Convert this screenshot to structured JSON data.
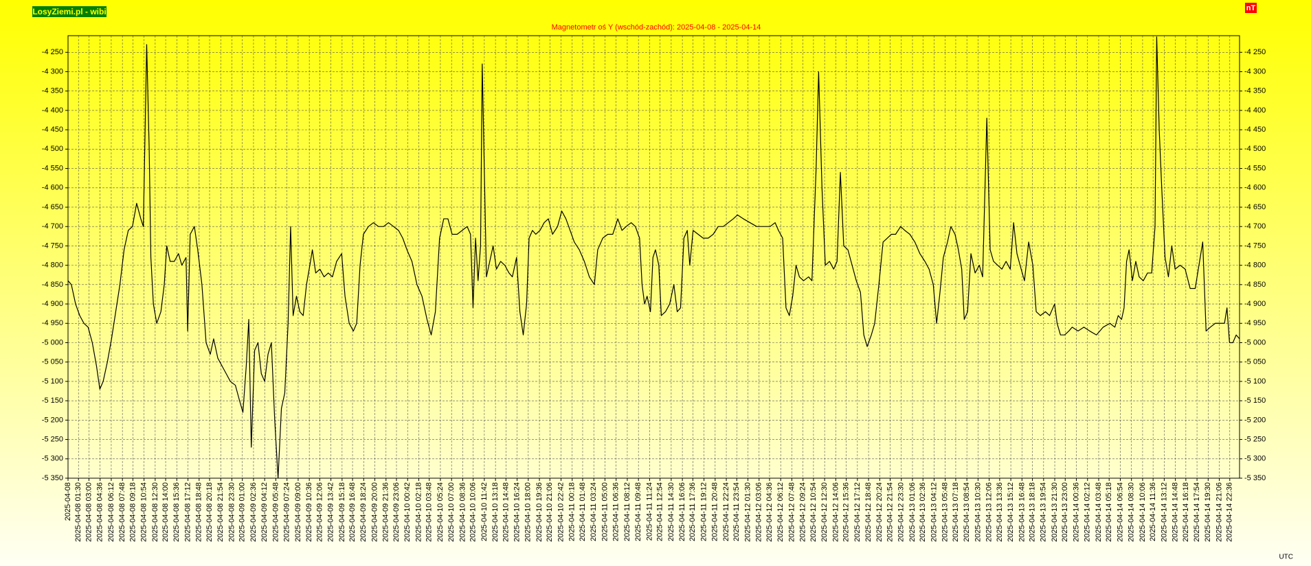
{
  "chart_data": {
    "type": "line",
    "title": "Magnetometr oś Y (wschód-zachód): 2025-04-08 - 2025-04-14",
    "badge": "LosyZiemi.pl - wibi",
    "unit": "nT",
    "xlabel": "UTC",
    "color": "#000000",
    "grid": true,
    "xlim": [
      0,
      168
    ],
    "ylim": [
      -5350,
      -4207
    ],
    "yticks": [
      {
        "value": -4250,
        "label": "-4 250"
      },
      {
        "value": -4300,
        "label": "-4 300"
      },
      {
        "value": -4350,
        "label": "-4 350"
      },
      {
        "value": -4400,
        "label": "-4 400"
      },
      {
        "value": -4450,
        "label": "-4 450"
      },
      {
        "value": -4500,
        "label": "-4 500"
      },
      {
        "value": -4550,
        "label": "-4 550"
      },
      {
        "value": -4600,
        "label": "-4 600"
      },
      {
        "value": -4650,
        "label": "-4 650"
      },
      {
        "value": -4700,
        "label": "-4 700"
      },
      {
        "value": -4750,
        "label": "-4 750"
      },
      {
        "value": -4800,
        "label": "-4 800"
      },
      {
        "value": -4850,
        "label": "-4 850"
      },
      {
        "value": -4900,
        "label": "-4 900"
      },
      {
        "value": -4950,
        "label": "-4 950"
      },
      {
        "value": -5000,
        "label": "-5 000"
      },
      {
        "value": -5050,
        "label": "-5 050"
      },
      {
        "value": -5100,
        "label": "-5 100"
      },
      {
        "value": -5150,
        "label": "-5 150"
      },
      {
        "value": -5200,
        "label": "-5 200"
      },
      {
        "value": -5250,
        "label": "-5 250"
      },
      {
        "value": -5300,
        "label": "-5 300"
      },
      {
        "value": -5350,
        "label": "-5 350"
      }
    ],
    "xticks": [
      {
        "value": 0,
        "label": "2025-04-08"
      },
      {
        "value": 1.5,
        "label": "2025-04-08 01:30"
      },
      {
        "value": 3,
        "label": "2025-04-08 03:00"
      },
      {
        "value": 4.6,
        "label": "2025-04-08 04:36"
      },
      {
        "value": 6.2,
        "label": "2025-04-08 06:12"
      },
      {
        "value": 7.8,
        "label": "2025-04-08 07:48"
      },
      {
        "value": 9.3,
        "label": "2025-04-08 09:18"
      },
      {
        "value": 10.9,
        "label": "2025-04-08 10:54"
      },
      {
        "value": 12.5,
        "label": "2025-04-08 12:30"
      },
      {
        "value": 14,
        "label": "2025-04-08 14:00"
      },
      {
        "value": 15.6,
        "label": "2025-04-08 15:36"
      },
      {
        "value": 17.2,
        "label": "2025-04-08 17:12"
      },
      {
        "value": 18.8,
        "label": "2025-04-08 18:48"
      },
      {
        "value": 20.3,
        "label": "2025-04-08 20:18"
      },
      {
        "value": 21.9,
        "label": "2025-04-08 21:54"
      },
      {
        "value": 23.5,
        "label": "2025-04-08 23:30"
      },
      {
        "value": 25,
        "label": "2025-04-09 01:00"
      },
      {
        "value": 26.6,
        "label": "2025-04-09 02:36"
      },
      {
        "value": 28.2,
        "label": "2025-04-09 04:12"
      },
      {
        "value": 29.8,
        "label": "2025-04-09 05:48"
      },
      {
        "value": 31.4,
        "label": "2025-04-09 07:24"
      },
      {
        "value": 33,
        "label": "2025-04-09 09:00"
      },
      {
        "value": 34.6,
        "label": "2025-04-09 10:36"
      },
      {
        "value": 36.1,
        "label": "2025-04-09 12:06"
      },
      {
        "value": 37.7,
        "label": "2025-04-09 13:42"
      },
      {
        "value": 39.3,
        "label": "2025-04-09 15:18"
      },
      {
        "value": 40.8,
        "label": "2025-04-09 16:48"
      },
      {
        "value": 42.4,
        "label": "2025-04-09 18:24"
      },
      {
        "value": 44,
        "label": "2025-04-09 20:00"
      },
      {
        "value": 45.6,
        "label": "2025-04-09 21:36"
      },
      {
        "value": 47.1,
        "label": "2025-04-09 23:06"
      },
      {
        "value": 48.7,
        "label": "2025-04-10 00:42"
      },
      {
        "value": 50.3,
        "label": "2025-04-10 02:18"
      },
      {
        "value": 51.8,
        "label": "2025-04-10 03:48"
      },
      {
        "value": 53.4,
        "label": "2025-04-10 05:24"
      },
      {
        "value": 55,
        "label": "2025-04-10 07:00"
      },
      {
        "value": 56.6,
        "label": "2025-04-10 08:36"
      },
      {
        "value": 58.1,
        "label": "2025-04-10 10:06"
      },
      {
        "value": 59.7,
        "label": "2025-04-10 11:42"
      },
      {
        "value": 61.3,
        "label": "2025-04-10 13:18"
      },
      {
        "value": 62.8,
        "label": "2025-04-10 14:48"
      },
      {
        "value": 64.4,
        "label": "2025-04-10 16:24"
      },
      {
        "value": 66,
        "label": "2025-04-10 18:00"
      },
      {
        "value": 67.6,
        "label": "2025-04-10 19:36"
      },
      {
        "value": 69.1,
        "label": "2025-04-10 21:06"
      },
      {
        "value": 70.7,
        "label": "2025-04-10 22:42"
      },
      {
        "value": 72.3,
        "label": "2025-04-11 00:18"
      },
      {
        "value": 73.8,
        "label": "2025-04-11 01:48"
      },
      {
        "value": 75.4,
        "label": "2025-04-11 03:24"
      },
      {
        "value": 77,
        "label": "2025-04-11 05:00"
      },
      {
        "value": 78.6,
        "label": "2025-04-11 06:36"
      },
      {
        "value": 80.2,
        "label": "2025-04-11 08:12"
      },
      {
        "value": 81.8,
        "label": "2025-04-11 09:48"
      },
      {
        "value": 83.4,
        "label": "2025-04-11 11:24"
      },
      {
        "value": 84.9,
        "label": "2025-04-11 12:54"
      },
      {
        "value": 86.5,
        "label": "2025-04-11 14:30"
      },
      {
        "value": 88.1,
        "label": "2025-04-11 16:06"
      },
      {
        "value": 89.6,
        "label": "2025-04-11 17:36"
      },
      {
        "value": 91.2,
        "label": "2025-04-11 19:12"
      },
      {
        "value": 92.8,
        "label": "2025-04-11 20:48"
      },
      {
        "value": 94.4,
        "label": "2025-04-11 22:24"
      },
      {
        "value": 95.9,
        "label": "2025-04-11 23:54"
      },
      {
        "value": 97.5,
        "label": "2025-04-12 01:30"
      },
      {
        "value": 99.1,
        "label": "2025-04-12 03:06"
      },
      {
        "value": 100.6,
        "label": "2025-04-12 04:36"
      },
      {
        "value": 102.2,
        "label": "2025-04-12 06:12"
      },
      {
        "value": 103.8,
        "label": "2025-04-12 07:48"
      },
      {
        "value": 105.4,
        "label": "2025-04-12 09:24"
      },
      {
        "value": 106.9,
        "label": "2025-04-12 10:54"
      },
      {
        "value": 108.5,
        "label": "2025-04-12 12:30"
      },
      {
        "value": 110.1,
        "label": "2025-04-12 14:06"
      },
      {
        "value": 111.6,
        "label": "2025-04-12 15:36"
      },
      {
        "value": 113.2,
        "label": "2025-04-12 17:12"
      },
      {
        "value": 114.8,
        "label": "2025-04-12 18:48"
      },
      {
        "value": 116.4,
        "label": "2025-04-12 20:24"
      },
      {
        "value": 117.9,
        "label": "2025-04-12 21:54"
      },
      {
        "value": 119.5,
        "label": "2025-04-12 23:30"
      },
      {
        "value": 121.1,
        "label": "2025-04-13 01:06"
      },
      {
        "value": 122.6,
        "label": "2025-04-13 02:36"
      },
      {
        "value": 124.2,
        "label": "2025-04-13 04:12"
      },
      {
        "value": 125.8,
        "label": "2025-04-13 05:48"
      },
      {
        "value": 127.3,
        "label": "2025-04-13 07:18"
      },
      {
        "value": 128.9,
        "label": "2025-04-13 08:54"
      },
      {
        "value": 130.5,
        "label": "2025-04-13 10:30"
      },
      {
        "value": 132.1,
        "label": "2025-04-13 12:06"
      },
      {
        "value": 133.6,
        "label": "2025-04-13 13:36"
      },
      {
        "value": 135.2,
        "label": "2025-04-13 15:12"
      },
      {
        "value": 136.8,
        "label": "2025-04-13 16:48"
      },
      {
        "value": 138.3,
        "label": "2025-04-13 18:18"
      },
      {
        "value": 139.9,
        "label": "2025-04-13 19:54"
      },
      {
        "value": 141.5,
        "label": "2025-04-13 21:30"
      },
      {
        "value": 143,
        "label": "2025-04-13 23:00"
      },
      {
        "value": 144.6,
        "label": "2025-04-14 00:36"
      },
      {
        "value": 146.2,
        "label": "2025-04-14 02:12"
      },
      {
        "value": 147.8,
        "label": "2025-04-14 03:48"
      },
      {
        "value": 149.3,
        "label": "2025-04-14 05:18"
      },
      {
        "value": 150.9,
        "label": "2025-04-14 06:54"
      },
      {
        "value": 152.5,
        "label": "2025-04-14 08:30"
      },
      {
        "value": 154.1,
        "label": "2025-04-14 10:06"
      },
      {
        "value": 155.6,
        "label": "2025-04-14 11:36"
      },
      {
        "value": 157.2,
        "label": "2025-04-14 13:12"
      },
      {
        "value": 158.8,
        "label": "2025-04-14 14:48"
      },
      {
        "value": 160.3,
        "label": "2025-04-14 16:18"
      },
      {
        "value": 161.9,
        "label": "2025-04-14 17:54"
      },
      {
        "value": 163.5,
        "label": "2025-04-14 19:30"
      },
      {
        "value": 165.1,
        "label": "2025-04-14 21:06"
      },
      {
        "value": 166.6,
        "label": "2025-04-14 22:36"
      }
    ],
    "x": [
      0,
      0.48,
      1.08,
      1.68,
      2.28,
      2.88,
      3.48,
      4.08,
      4.56,
      5.04,
      5.64,
      6.24,
      6.84,
      7.44,
      8.04,
      8.64,
      9.24,
      9.84,
      10.44,
      10.8,
      11.28,
      11.64,
      11.88,
      12.24,
      12.72,
      13.32,
      13.8,
      14.16,
      14.64,
      15.24,
      15.84,
      16.32,
      16.92,
      17.16,
      17.52,
      18.12,
      18.6,
      19.2,
      19.8,
      20.4,
      20.88,
      21.48,
      22.08,
      22.68,
      23.28,
      24,
      24.6,
      25.08,
      25.56,
      25.92,
      26.28,
      26.76,
      27.24,
      27.72,
      28.2,
      28.68,
      29.16,
      29.64,
      30.12,
      30.6,
      31.08,
      31.56,
      31.92,
      32.28,
      32.76,
      33.24,
      33.72,
      34.2,
      34.68,
      35.04,
      35.52,
      36.12,
      36.72,
      37.32,
      37.92,
      38.52,
      39.24,
      39.72,
      40.32,
      40.92,
      41.4,
      41.88,
      42.36,
      43.08,
      43.8,
      44.52,
      45.24,
      45.96,
      46.68,
      47.4,
      48,
      48.6,
      49.32,
      50.04,
      50.76,
      51.48,
      52.08,
      52.68,
      53.28,
      53.88,
      54.48,
      55.08,
      55.8,
      56.52,
      57.24,
      57.72,
      58.08,
      58.44,
      58.8,
      59.16,
      59.4,
      59.64,
      60,
      60.48,
      60.96,
      61.44,
      62.04,
      62.64,
      63.24,
      63.72,
      64.32,
      64.8,
      65.28,
      65.76,
      66.12,
      66.6,
      67.08,
      67.68,
      68.28,
      68.88,
      69.48,
      70.2,
      70.8,
      71.4,
      72,
      72.6,
      73.32,
      74.04,
      74.76,
      75.48,
      75.96,
      76.68,
      77.4,
      78.12,
      78.84,
      79.44,
      80.04,
      80.76,
      81.36,
      81.96,
      82.32,
      82.68,
      83.04,
      83.52,
      83.88,
      84.24,
      84.72,
      85.08,
      85.68,
      86.28,
      86.88,
      87.36,
      87.84,
      88.32,
      88.8,
      89.16,
      89.64,
      90.36,
      91.08,
      91.8,
      92.52,
      93.24,
      93.96,
      94.68,
      95.4,
      96,
      96.84,
      97.8,
      98.76,
      99.72,
      100.68,
      101.4,
      101.88,
      102.48,
      102.96,
      103.44,
      103.92,
      104.4,
      104.88,
      105.48,
      106.2,
      106.68,
      107.28,
      107.64,
      108.12,
      108.6,
      109.2,
      109.8,
      110.28,
      110.76,
      111.24,
      111.84,
      112.44,
      113.04,
      113.64,
      114.12,
      114.6,
      115.2,
      115.68,
      116.28,
      116.88,
      117.48,
      118.08,
      118.68,
      119.4,
      120,
      120.72,
      121.44,
      122.16,
      122.88,
      123.48,
      124.08,
      124.56,
      125.04,
      125.52,
      126.12,
      126.6,
      127.2,
      127.68,
      128.16,
      128.52,
      129,
      129.48,
      130.08,
      130.68,
      131.16,
      131.76,
      132.24,
      132.72,
      133.32,
      133.92,
      134.52,
      135.12,
      135.6,
      136.08,
      136.68,
      137.16,
      137.76,
      138.36,
      138.84,
      139.44,
      140.16,
      140.76,
      141.48,
      141.84,
      142.32,
      142.92,
      143.52,
      144,
      144.84,
      145.68,
      146.52,
      147.48,
      148.44,
      149.4,
      150.12,
      150.6,
      151.08,
      151.44,
      151.8,
      152.16,
      152.64,
      153.12,
      153.6,
      154.2,
      154.8,
      155.4,
      155.88,
      156.12,
      156.48,
      156.84,
      157.32,
      157.8,
      158.28,
      158.76,
      159.48,
      160.2,
      160.92,
      161.64,
      162.36,
      162.72,
      163.2,
      163.8,
      164.52,
      165.24,
      165.84,
      166.2,
      166.56,
      167.04,
      167.52,
      168
    ],
    "values": [
      -4840,
      -4850,
      -4900,
      -4930,
      -4950,
      -4960,
      -5000,
      -5060,
      -5120,
      -5100,
      -5050,
      -4990,
      -4920,
      -4850,
      -4760,
      -4710,
      -4700,
      -4640,
      -4680,
      -4700,
      -4230,
      -4500,
      -4780,
      -4900,
      -4950,
      -4920,
      -4850,
      -4750,
      -4790,
      -4790,
      -4770,
      -4800,
      -4780,
      -4970,
      -4720,
      -4700,
      -4760,
      -4850,
      -5000,
      -5030,
      -4990,
      -5040,
      -5060,
      -5080,
      -5100,
      -5110,
      -5150,
      -5180,
      -5060,
      -4940,
      -5270,
      -5020,
      -5000,
      -5080,
      -5100,
      -5030,
      -5000,
      -5200,
      -5350,
      -5170,
      -5130,
      -4950,
      -4700,
      -4930,
      -4880,
      -4920,
      -4930,
      -4850,
      -4800,
      -4760,
      -4820,
      -4810,
      -4830,
      -4820,
      -4830,
      -4790,
      -4770,
      -4880,
      -4950,
      -4970,
      -4950,
      -4800,
      -4720,
      -4700,
      -4690,
      -4700,
      -4700,
      -4690,
      -4700,
      -4710,
      -4730,
      -4760,
      -4790,
      -4850,
      -4880,
      -4940,
      -4980,
      -4920,
      -4730,
      -4680,
      -4680,
      -4720,
      -4720,
      -4710,
      -4700,
      -4720,
      -4910,
      -4730,
      -4840,
      -4750,
      -4280,
      -4500,
      -4830,
      -4790,
      -4750,
      -4810,
      -4790,
      -4800,
      -4820,
      -4830,
      -4780,
      -4920,
      -4980,
      -4900,
      -4730,
      -4710,
      -4720,
      -4710,
      -4690,
      -4680,
      -4720,
      -4700,
      -4660,
      -4680,
      -4710,
      -4740,
      -4760,
      -4790,
      -4830,
      -4850,
      -4760,
      -4730,
      -4720,
      -4720,
      -4680,
      -4710,
      -4700,
      -4690,
      -4700,
      -4730,
      -4850,
      -4900,
      -4880,
      -4920,
      -4780,
      -4760,
      -4800,
      -4930,
      -4920,
      -4900,
      -4850,
      -4920,
      -4910,
      -4730,
      -4710,
      -4800,
      -4710,
      -4720,
      -4730,
      -4730,
      -4720,
      -4700,
      -4700,
      -4690,
      -4680,
      -4670,
      -4680,
      -4690,
      -4700,
      -4700,
      -4700,
      -4690,
      -4710,
      -4730,
      -4910,
      -4930,
      -4880,
      -4800,
      -4830,
      -4840,
      -4830,
      -4840,
      -4550,
      -4300,
      -4600,
      -4800,
      -4790,
      -4810,
      -4790,
      -4560,
      -4750,
      -4760,
      -4800,
      -4840,
      -4870,
      -4980,
      -5010,
      -4980,
      -4950,
      -4850,
      -4740,
      -4730,
      -4720,
      -4720,
      -4700,
      -4710,
      -4720,
      -4740,
      -4770,
      -4790,
      -4810,
      -4850,
      -4950,
      -4870,
      -4780,
      -4740,
      -4700,
      -4720,
      -4760,
      -4810,
      -4940,
      -4920,
      -4770,
      -4820,
      -4800,
      -4830,
      -4420,
      -4760,
      -4790,
      -4800,
      -4810,
      -4790,
      -4810,
      -4690,
      -4770,
      -4810,
      -4840,
      -4740,
      -4800,
      -4920,
      -4930,
      -4920,
      -4930,
      -4900,
      -4950,
      -4980,
      -4980,
      -4970,
      -4960,
      -4970,
      -4960,
      -4970,
      -4980,
      -4960,
      -4950,
      -4960,
      -4930,
      -4940,
      -4910,
      -4790,
      -4760,
      -4840,
      -4790,
      -4830,
      -4840,
      -4820,
      -4820,
      -4700,
      -4210,
      -4450,
      -4600,
      -4780,
      -4830,
      -4750,
      -4810,
      -4800,
      -4810,
      -4860,
      -4860,
      -4780,
      -4740,
      -4970,
      -4960,
      -4950,
      -4950,
      -4950,
      -4910,
      -5000,
      -5000,
      -4980,
      -4990
    ]
  }
}
